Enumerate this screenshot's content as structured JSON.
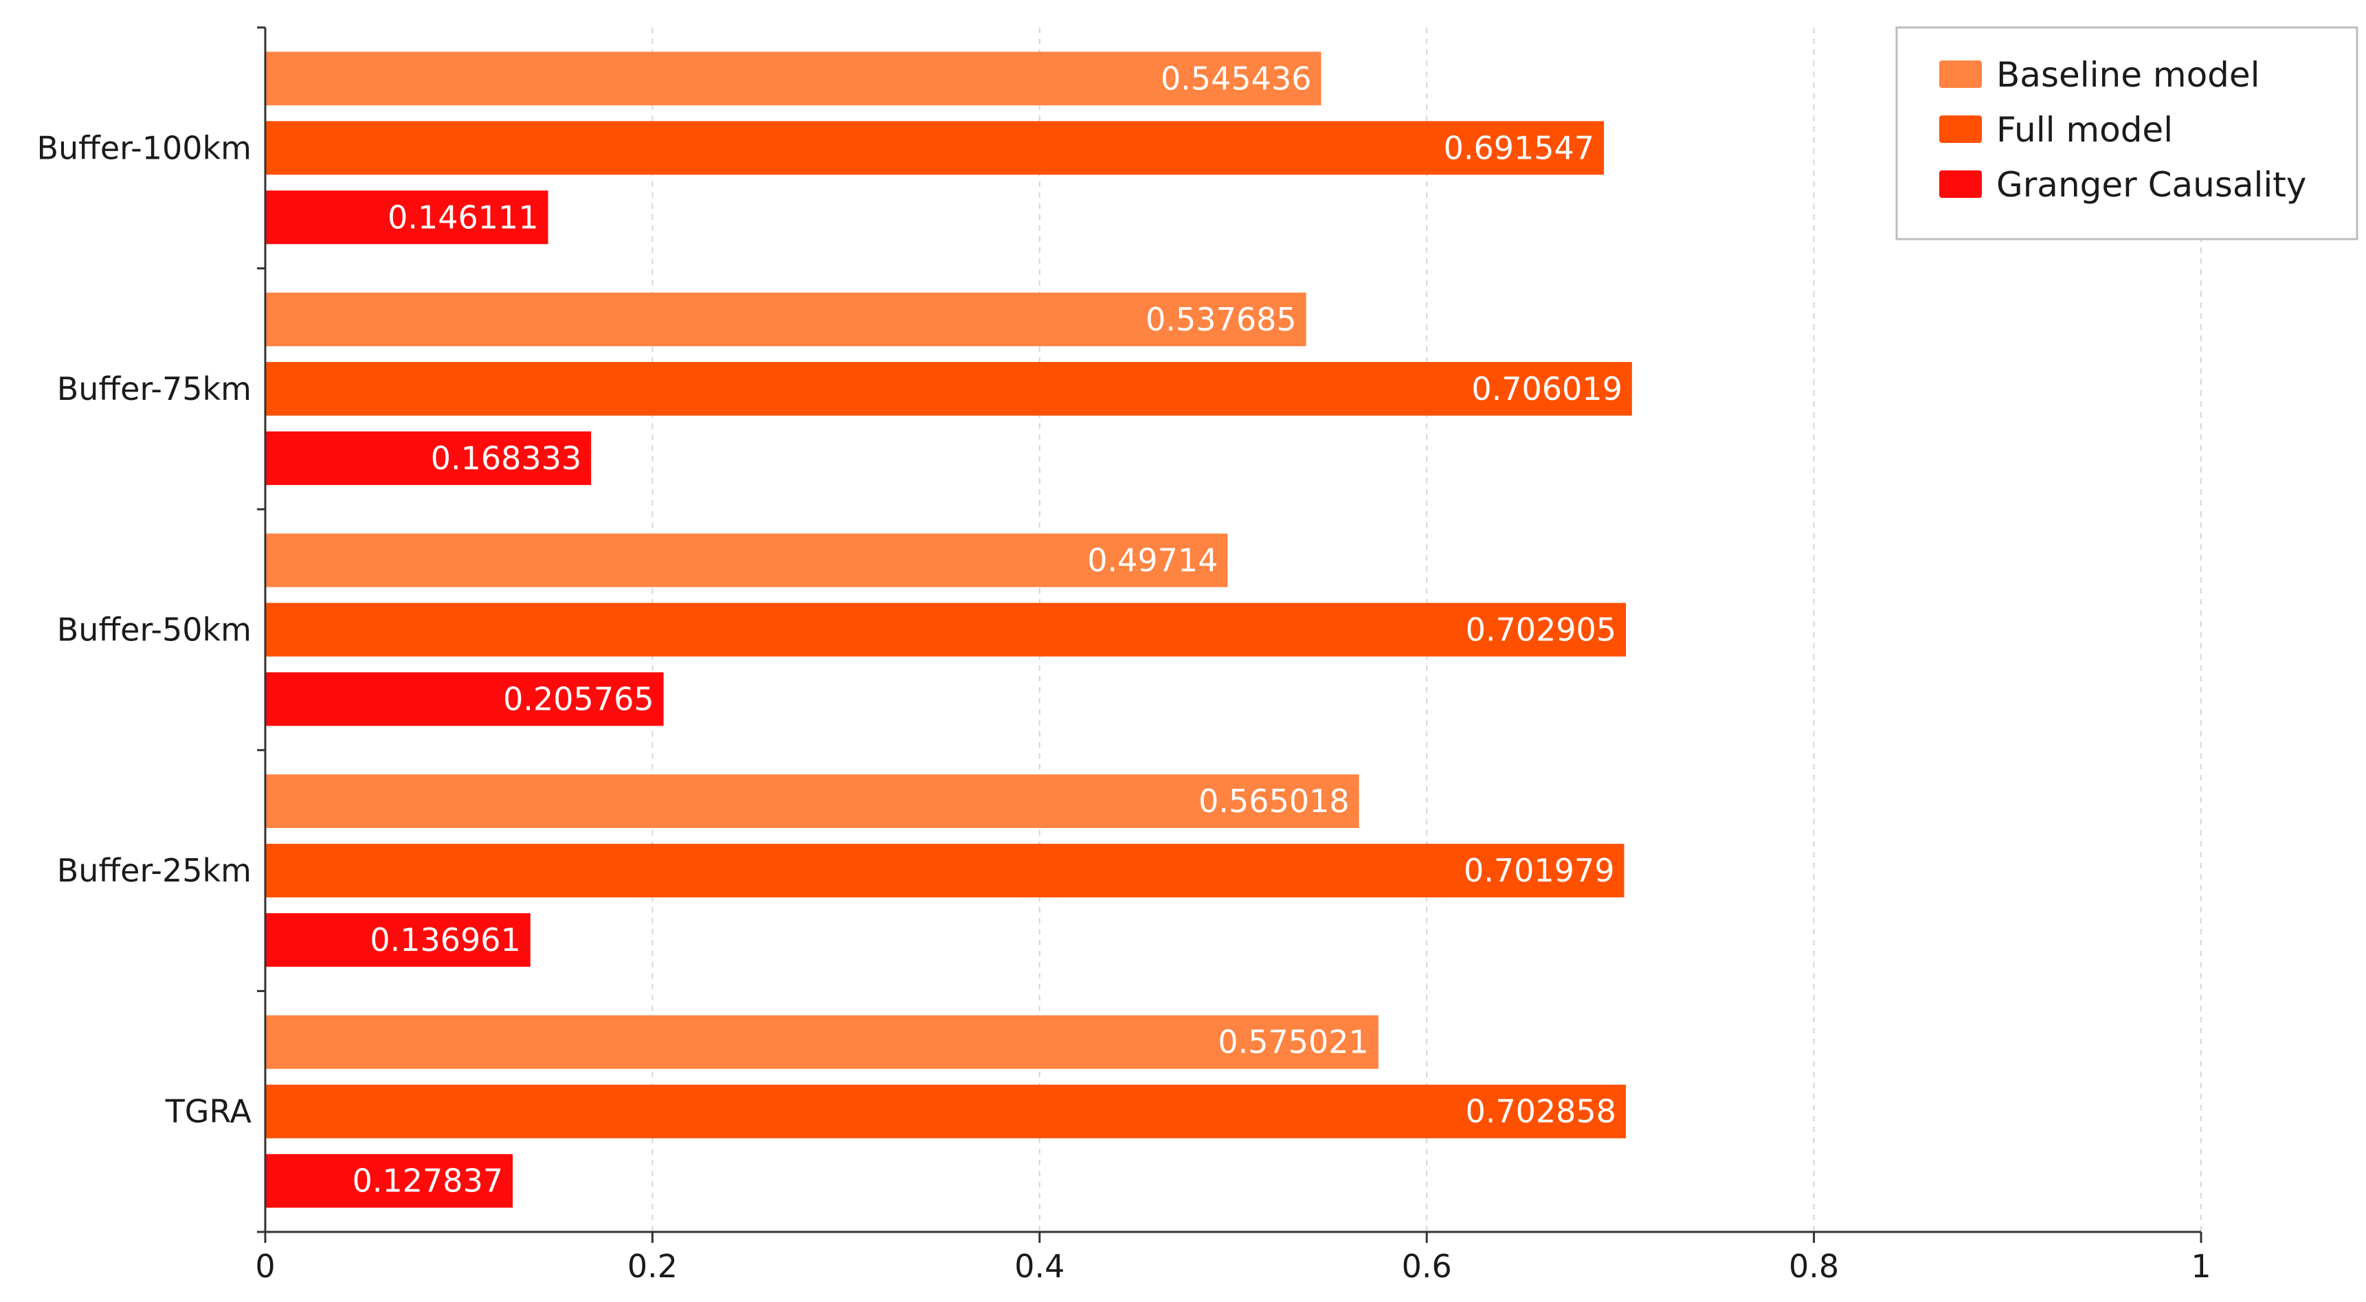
{
  "chart_data": {
    "type": "bar",
    "orientation": "horizontal",
    "categories": [
      "Buffer-100km",
      "Buffer-75km",
      "Buffer-50km",
      "Buffer-25km",
      "TGRA"
    ],
    "series": [
      {
        "name": "Baseline model",
        "color": "#FF8341",
        "values": [
          0.545436,
          0.537685,
          0.49714,
          0.565018,
          0.575021
        ],
        "labels": [
          "0.545436",
          "0.537685",
          "0.49714",
          "0.565018",
          "0.575021"
        ]
      },
      {
        "name": "Full model",
        "color": "#FF5000",
        "values": [
          0.691547,
          0.706019,
          0.702905,
          0.701979,
          0.702858
        ],
        "labels": [
          "0.691547",
          "0.706019",
          "0.702905",
          "0.701979",
          "0.702858"
        ]
      },
      {
        "name": "Granger Causality",
        "color": "#FF0A0A",
        "values": [
          0.146111,
          0.168333,
          0.205765,
          0.136961,
          0.127837
        ],
        "labels": [
          "0.146111",
          "0.168333",
          "0.205765",
          "0.136961",
          "0.127837"
        ]
      }
    ],
    "xlim": [
      0,
      1
    ],
    "xticks": [
      0,
      0.2,
      0.4,
      0.6,
      0.8,
      1
    ],
    "xtick_labels": [
      "0",
      "0.2",
      "0.4",
      "0.6",
      "0.8",
      "1"
    ],
    "grid": "vertical dashed",
    "legend_position": "top-right"
  }
}
